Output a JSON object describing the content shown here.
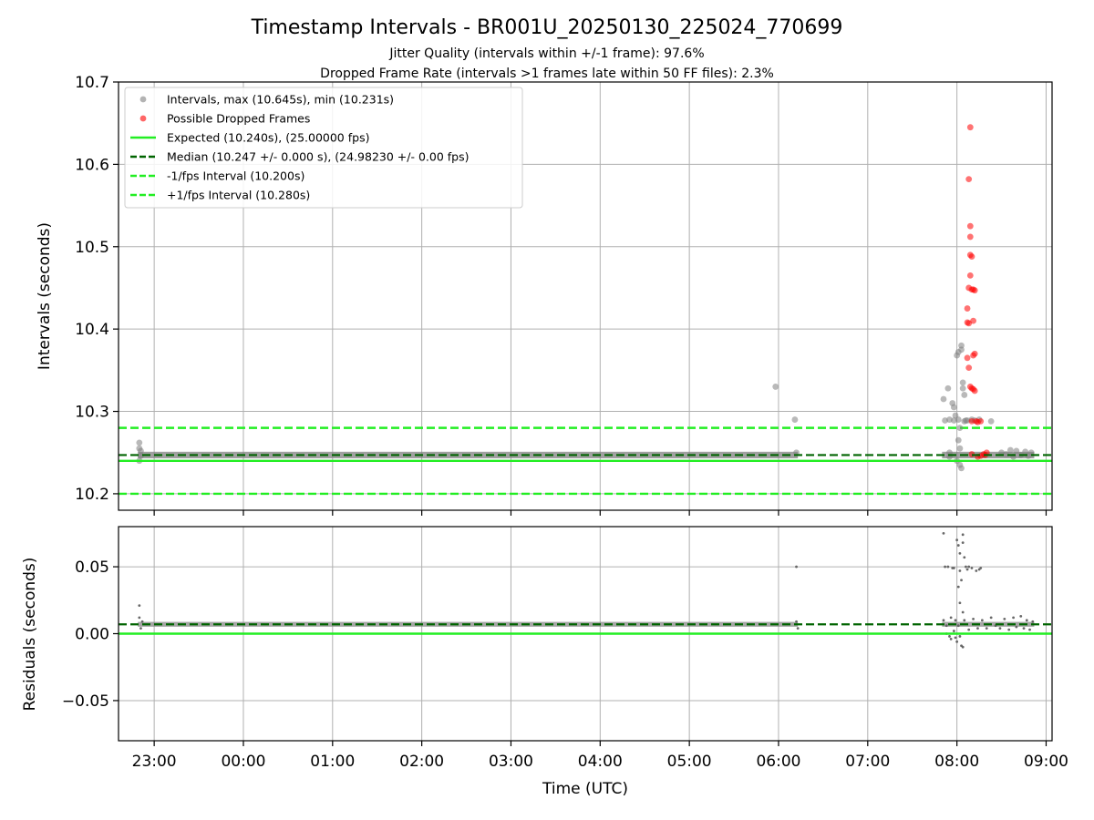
{
  "figure": {
    "title": "Timestamp Intervals - BR001U_20250130_225024_770699",
    "subtitle1": "Jitter Quality (intervals within +/-1 frame): 97.6%",
    "subtitle2": "Dropped Frame Rate (intervals >1 frames late within 50 FF files): 2.3%",
    "xlabel": "Time (UTC)"
  },
  "colors": {
    "intervals": "#808080",
    "dropped": "#ff0000",
    "expected": "#22ee22",
    "median": "#006400",
    "fps_band": "#22ee22",
    "grid": "#b0b0b0"
  },
  "chart_data": [
    {
      "type": "scatter",
      "panel": "intervals",
      "ylabel": "Intervals (seconds)",
      "ylim": [
        10.18,
        10.7
      ],
      "yticks": [
        10.2,
        10.3,
        10.4,
        10.5,
        10.6,
        10.7
      ],
      "ytick_labels": [
        "10.2",
        "10.3",
        "10.4",
        "10.5",
        "10.6",
        "10.7"
      ],
      "xlim": [
        "22:36",
        "09:04"
      ],
      "xticks": [
        "23:00",
        "00:00",
        "01:00",
        "02:00",
        "03:00",
        "04:00",
        "05:00",
        "06:00",
        "07:00",
        "08:00",
        "09:00"
      ],
      "grid": true,
      "legend_placement": "top-left",
      "legend": [
        {
          "label": "Intervals, max (10.645s), min (10.231s)",
          "style": "marker",
          "color": "#808080"
        },
        {
          "label": "Possible Dropped Frames",
          "style": "marker",
          "color": "#ff0000"
        },
        {
          "label": "Expected (10.240s), (25.00000 fps)",
          "style": "solid",
          "color": "#22ee22"
        },
        {
          "label": "Median (10.247 +/- 0.000 s), (24.98230 +/- 0.00 fps)",
          "style": "dashed",
          "color": "#006400"
        },
        {
          "label": "-1/fps Interval (10.200s)",
          "style": "dashed",
          "color": "#22ee22"
        },
        {
          "label": "+1/fps Interval (10.280s)",
          "style": "dashed",
          "color": "#22ee22"
        }
      ],
      "hlines": {
        "expected": 10.24,
        "median": 10.247,
        "minus_fps": 10.2,
        "plus_fps": 10.28
      },
      "series": [
        {
          "name": "Intervals",
          "color": "#808080",
          "points": [
            [
              "22:50",
              10.262
            ],
            [
              "22:50",
              10.255
            ],
            [
              "22:50",
              10.24
            ],
            [
              "22:51",
              10.252
            ],
            [
              "22:51",
              10.246
            ],
            [
              "05:58",
              10.33
            ],
            [
              "06:11",
              10.29
            ],
            [
              "06:12",
              10.25
            ],
            [
              "07:51",
              10.315
            ],
            [
              "07:54",
              10.328
            ],
            [
              "07:57",
              10.31
            ],
            [
              "07:58",
              10.305
            ],
            [
              "07:59",
              10.295
            ],
            [
              "08:00",
              10.368
            ],
            [
              "08:01",
              10.372
            ],
            [
              "08:01",
              10.29
            ],
            [
              "08:01",
              10.265
            ],
            [
              "08:02",
              10.28
            ],
            [
              "08:02",
              10.255
            ],
            [
              "08:02",
              10.235
            ],
            [
              "08:03",
              10.231
            ],
            [
              "08:03",
              10.38
            ],
            [
              "08:03",
              10.375
            ],
            [
              "08:04",
              10.335
            ],
            [
              "08:04",
              10.328
            ],
            [
              "08:05",
              10.32
            ],
            [
              "07:52",
              10.289
            ],
            [
              "07:55",
              10.29
            ],
            [
              "07:58",
              10.289
            ],
            [
              "08:05",
              10.288
            ],
            [
              "08:06",
              10.289
            ],
            [
              "08:07",
              10.289
            ],
            [
              "07:55",
              10.245
            ],
            [
              "08:00",
              10.24
            ],
            [
              "07:55",
              10.25
            ],
            [
              "08:10",
              10.29
            ],
            [
              "08:12",
              10.289
            ],
            [
              "08:15",
              10.29
            ],
            [
              "08:23",
              10.288
            ],
            [
              "08:30",
              10.25
            ],
            [
              "08:33",
              10.248
            ],
            [
              "08:36",
              10.253
            ],
            [
              "08:38",
              10.245
            ],
            [
              "08:40",
              10.252
            ],
            [
              "08:43",
              10.247
            ],
            [
              "08:46",
              10.251
            ],
            [
              "08:48",
              10.246
            ],
            [
              "08:50",
              10.25
            ]
          ]
        },
        {
          "name": "Possible Dropped Frames",
          "color": "#ff0000",
          "points": [
            [
              "08:09",
              10.645
            ],
            [
              "08:08",
              10.582
            ],
            [
              "08:09",
              10.525
            ],
            [
              "08:09",
              10.512
            ],
            [
              "08:09",
              10.49
            ],
            [
              "08:10",
              10.488
            ],
            [
              "08:09",
              10.465
            ],
            [
              "08:08",
              10.45
            ],
            [
              "08:10",
              10.448
            ],
            [
              "08:11",
              10.448
            ],
            [
              "08:12",
              10.447
            ],
            [
              "08:07",
              10.425
            ],
            [
              "08:11",
              10.41
            ],
            [
              "08:07",
              10.408
            ],
            [
              "08:08",
              10.407
            ],
            [
              "08:12",
              10.37
            ],
            [
              "08:11",
              10.368
            ],
            [
              "08:07",
              10.365
            ],
            [
              "08:08",
              10.353
            ],
            [
              "08:09",
              10.33
            ],
            [
              "08:10",
              10.328
            ],
            [
              "08:11",
              10.327
            ],
            [
              "08:12",
              10.325
            ],
            [
              "08:10",
              10.288
            ],
            [
              "08:13",
              10.288
            ],
            [
              "08:14",
              10.287
            ],
            [
              "08:16",
              10.288
            ],
            [
              "08:10",
              10.248
            ],
            [
              "08:14",
              10.245
            ],
            [
              "08:16",
              10.246
            ],
            [
              "08:18",
              10.248
            ],
            [
              "08:19",
              10.247
            ],
            [
              "08:20",
              10.25
            ]
          ]
        }
      ]
    },
    {
      "type": "scatter",
      "panel": "residuals",
      "ylabel": "Residuals (seconds)",
      "ylim": [
        -0.08,
        0.08
      ],
      "yticks": [
        -0.05,
        0.0,
        0.05
      ],
      "ytick_labels": [
        "−0.05",
        "0.00",
        "0.05"
      ],
      "xlim": [
        "22:36",
        "09:04"
      ],
      "xticks": [
        "23:00",
        "00:00",
        "01:00",
        "02:00",
        "03:00",
        "04:00",
        "05:00",
        "06:00",
        "07:00",
        "08:00",
        "09:00"
      ],
      "grid": true,
      "hlines": {
        "expected": 0.0,
        "median": 0.007
      },
      "series": [
        {
          "name": "Residuals",
          "color": "#606060",
          "points": [
            [
              "22:50",
              0.021
            ],
            [
              "22:50",
              0.012
            ],
            [
              "22:51",
              0.004
            ],
            [
              "22:52",
              0.009
            ],
            [
              "06:12",
              0.05
            ],
            [
              "06:12",
              0.009
            ],
            [
              "06:13",
              0.004
            ],
            [
              "07:51",
              0.075
            ],
            [
              "07:52",
              0.05
            ],
            [
              "07:54",
              0.05
            ],
            [
              "07:57",
              0.049
            ],
            [
              "07:58",
              0.049
            ],
            [
              "08:00",
              0.07
            ],
            [
              "08:01",
              0.066
            ],
            [
              "08:02",
              0.06
            ],
            [
              "08:04",
              0.074
            ],
            [
              "08:04",
              0.068
            ],
            [
              "08:05",
              0.057
            ],
            [
              "08:06",
              0.05
            ],
            [
              "08:07",
              0.048
            ],
            [
              "08:08",
              0.05
            ],
            [
              "08:10",
              0.049
            ],
            [
              "08:13",
              0.047
            ],
            [
              "08:15",
              0.048
            ],
            [
              "08:16",
              0.049
            ],
            [
              "08:02",
              0.047
            ],
            [
              "08:03",
              0.04
            ],
            [
              "08:01",
              0.035
            ],
            [
              "08:02",
              0.023
            ],
            [
              "08:04",
              0.016
            ],
            [
              "07:53",
              0.0
            ],
            [
              "07:55",
              -0.002
            ],
            [
              "07:56",
              -0.004
            ],
            [
              "07:58",
              0.002
            ],
            [
              "07:59",
              -0.003
            ],
            [
              "08:00",
              -0.006
            ],
            [
              "08:03",
              -0.009
            ],
            [
              "08:04",
              -0.01
            ],
            [
              "08:02",
              -0.002
            ],
            [
              "07:51",
              0.01
            ],
            [
              "07:53",
              0.006
            ],
            [
              "07:56",
              0.012
            ],
            [
              "07:59",
              0.01
            ],
            [
              "08:01",
              0.006
            ],
            [
              "08:05",
              0.01
            ],
            [
              "08:08",
              0.003
            ],
            [
              "08:11",
              0.011
            ],
            [
              "08:14",
              0.004
            ],
            [
              "08:17",
              0.01
            ],
            [
              "08:20",
              0.004
            ],
            [
              "08:23",
              0.012
            ],
            [
              "08:26",
              0.006
            ],
            [
              "08:29",
              0.004
            ],
            [
              "08:32",
              0.011
            ],
            [
              "08:35",
              0.003
            ],
            [
              "08:38",
              0.012
            ],
            [
              "08:40",
              0.005
            ],
            [
              "08:43",
              0.013
            ],
            [
              "08:45",
              0.004
            ],
            [
              "08:47",
              0.01
            ],
            [
              "08:49",
              0.003
            ],
            [
              "08:51",
              0.009
            ]
          ]
        }
      ]
    }
  ]
}
